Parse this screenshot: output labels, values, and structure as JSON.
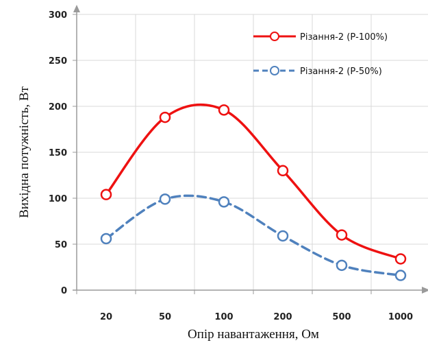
{
  "chart_data": {
    "type": "line",
    "categories": [
      "20",
      "50",
      "100",
      "200",
      "500",
      "1000"
    ],
    "series": [
      {
        "name": "Різання-2 (Р-100%)",
        "values": [
          104,
          188,
          196,
          130,
          60,
          34
        ],
        "color": "#ee1111",
        "dashed": false
      },
      {
        "name": "Різання-2 (Р-50%)",
        "values": [
          56,
          99,
          96,
          59,
          27,
          16
        ],
        "color": "#4f81bd",
        "dashed": true
      }
    ],
    "xlabel": "Опір навантаження, Ом",
    "ylabel": "Вихідна потужність, Вт",
    "ylim": [
      0,
      300
    ],
    "yticks": [
      "0",
      "50",
      "100",
      "150",
      "200",
      "250",
      "300"
    ],
    "grid": true,
    "smooth": true,
    "legend_position": "top-right"
  }
}
